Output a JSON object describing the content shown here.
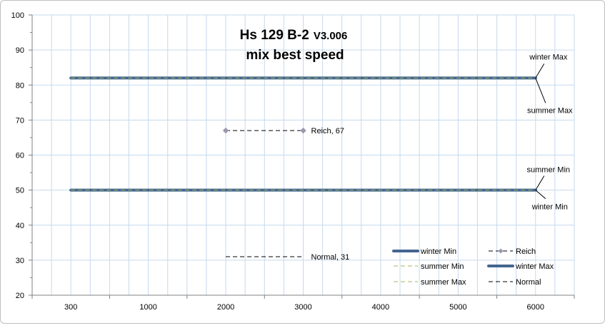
{
  "chart_data": {
    "type": "line",
    "title": "Hs 129 B-2",
    "title_version": "V3.006",
    "subtitle": "mix best speed",
    "x_categories": [
      "300",
      "1000",
      "2000",
      "3000",
      "4000",
      "5000",
      "6000"
    ],
    "ylim": [
      20,
      100
    ],
    "y_ticks": [
      20,
      30,
      40,
      50,
      60,
      70,
      80,
      90,
      100
    ],
    "grid": true,
    "legend_position": "bottom-right",
    "series": [
      {
        "name": "winter Min",
        "x": [
          "300",
          "6000"
        ],
        "values": [
          50,
          50
        ],
        "color": "#44658f",
        "style": "thick"
      },
      {
        "name": "summer Min",
        "x": [
          "300",
          "6000"
        ],
        "values": [
          50,
          50
        ],
        "color": "#9bbb59",
        "style": "dashed"
      },
      {
        "name": "summer Max",
        "x": [
          "300",
          "6000"
        ],
        "values": [
          82,
          82
        ],
        "color": "#9bbb59",
        "style": "dashed"
      },
      {
        "name": "Reich",
        "x": [
          "2000",
          "3000"
        ],
        "values": [
          67,
          67
        ],
        "color": "#000000",
        "style": "dashed-marker",
        "marker_color": "#9a98b0"
      },
      {
        "name": "winter Max",
        "x": [
          "300",
          "6000"
        ],
        "values": [
          82,
          82
        ],
        "color": "#44658f",
        "style": "thick"
      },
      {
        "name": "Normal",
        "x": [
          "2000",
          "3000"
        ],
        "values": [
          31,
          31
        ],
        "color": "#000000",
        "style": "dashed"
      }
    ],
    "annotations": [
      {
        "text": "winter Max",
        "x": "6000",
        "y": 82,
        "side": "above"
      },
      {
        "text": "summer Max",
        "x": "6000",
        "y": 82,
        "side": "below"
      },
      {
        "text": "summer Min",
        "x": "6000",
        "y": 50,
        "side": "above"
      },
      {
        "text": "winter Min",
        "x": "6000",
        "y": 50,
        "side": "below"
      },
      {
        "text": "Reich, 67",
        "x": "3000",
        "y": 67,
        "side": "right"
      },
      {
        "text": "Normal, 31",
        "x": "3000",
        "y": 31,
        "side": "right"
      }
    ]
  }
}
